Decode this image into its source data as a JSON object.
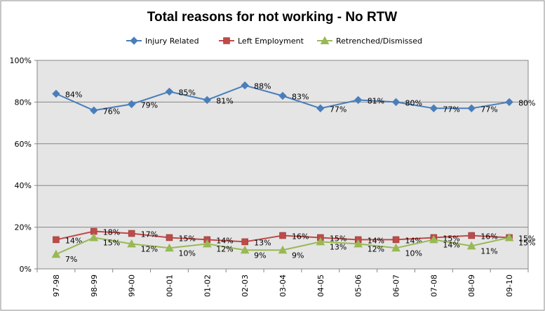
{
  "chart_data": {
    "type": "line",
    "title": "Total reasons for not working - No RTW",
    "xlabel": "",
    "ylabel": "",
    "categories": [
      "97-98",
      "98-99",
      "99-00",
      "00-01",
      "01-02",
      "02-03",
      "03-04",
      "04-05",
      "05-06",
      "06-07",
      "07-08",
      "08-09",
      "09-10"
    ],
    "ylim": [
      0,
      100
    ],
    "yticks": [
      "0%",
      "20%",
      "40%",
      "60%",
      "80%",
      "100%"
    ],
    "grid": true,
    "legend_position": "top",
    "series": [
      {
        "name": "Injury Related",
        "color": "#4a7ebb",
        "marker": "diamond",
        "values": [
          84,
          76,
          79,
          85,
          81,
          88,
          83,
          77,
          81,
          80,
          77,
          77,
          80
        ],
        "labels": [
          "84%",
          "76%",
          "79%",
          "85%",
          "81%",
          "88%",
          "83%",
          "77%",
          "81%",
          "80%",
          "77%",
          "77%",
          "80%"
        ]
      },
      {
        "name": "Left Employment",
        "color": "#be4b48",
        "marker": "square",
        "values": [
          14,
          18,
          17,
          15,
          14,
          13,
          16,
          15,
          14,
          14,
          15,
          16,
          15
        ],
        "labels": [
          "14%",
          "18%",
          "17%",
          "15%",
          "14%",
          "13%",
          "16%",
          "15%",
          "14%",
          "14%",
          "15%",
          "16%",
          "15%"
        ]
      },
      {
        "name": "Retrenched/Dismissed",
        "color": "#98b954",
        "marker": "triangle",
        "values": [
          7,
          15,
          12,
          10,
          12,
          9,
          9,
          13,
          12,
          10,
          14,
          11,
          15
        ],
        "labels": [
          "7%",
          "15%",
          "12%",
          "10%",
          "12%",
          "9%",
          "9%",
          "13%",
          "12%",
          "10%",
          "14%",
          "11%",
          "15%"
        ]
      }
    ]
  }
}
